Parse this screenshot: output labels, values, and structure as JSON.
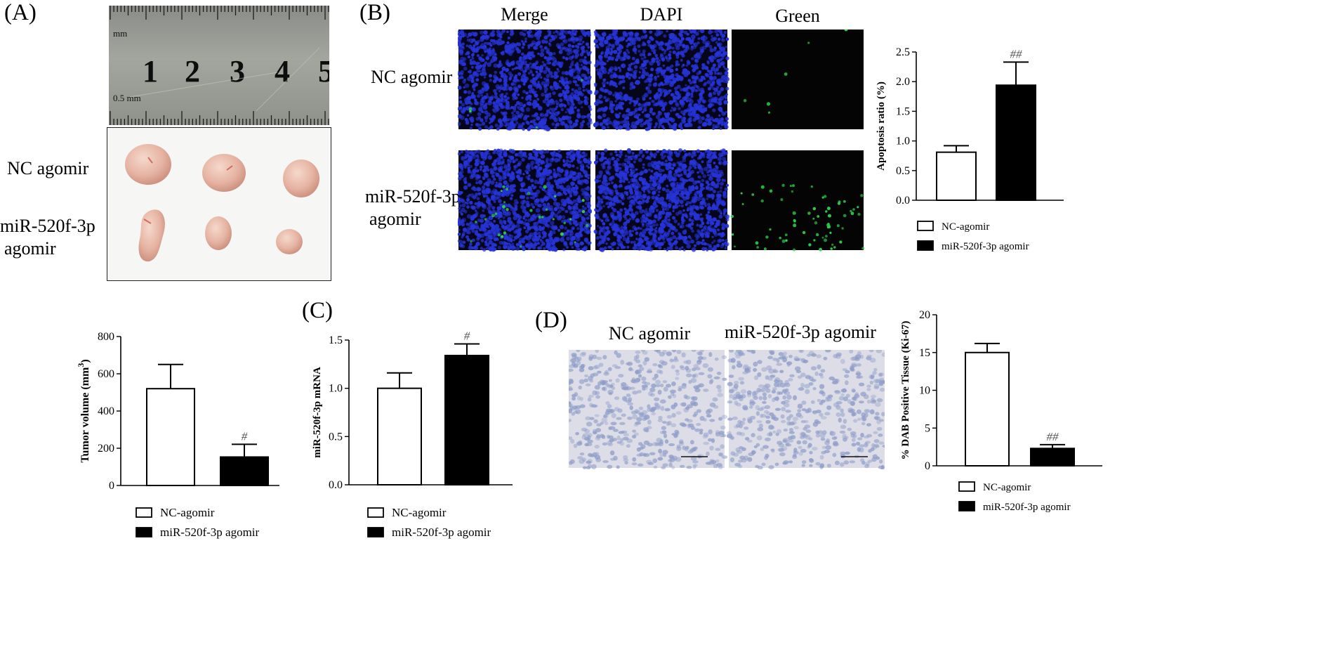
{
  "panels": {
    "A": {
      "label": "(A)",
      "ruler": {
        "unit_top": "mm",
        "unit_bottom": "0.5 mm",
        "numbers": [
          "1",
          "2",
          "3",
          "4",
          "5"
        ]
      },
      "rows": [
        {
          "label": "NC agomir"
        },
        {
          "label_line1": "miR-520f-3p",
          "label_line2": "agomir"
        }
      ]
    },
    "B": {
      "label": "(B)",
      "columns": [
        "Merge",
        "DAPI",
        "Green"
      ],
      "rows": [
        {
          "label": "NC agomir"
        },
        {
          "label_line1": "miR-520f-3p",
          "label_line2": "agomir"
        }
      ]
    },
    "C": {
      "label": "(C)"
    },
    "D": {
      "label": "(D)",
      "columns": [
        "NC agomir",
        "miR-520f-3p agomir"
      ]
    }
  },
  "legend": {
    "nc": "NC-agomir",
    "mir": "miR-520f-3p agomir"
  },
  "colors": {
    "dapi": "#2633d6",
    "green": "#2fd14a",
    "ihc_bg": "#dcdde6",
    "ihc_nuclei": "#8e9cc8",
    "tissue": "#e8b9a8",
    "bar_mir": "#000000"
  },
  "chart_data": [
    {
      "id": "apoptosis",
      "type": "bar",
      "categories": [
        "NC-agomir",
        "miR-520f-3p agomir"
      ],
      "values": [
        0.81,
        1.94
      ],
      "errors": [
        0.11,
        0.39
      ],
      "significance": [
        "",
        "##"
      ],
      "ylabel": "Apoptosis ratio (%)",
      "ylim": [
        0,
        2.5
      ],
      "yticks": [
        0.0,
        0.5,
        1.0,
        1.5,
        2.0,
        2.5
      ],
      "tick_labels": [
        "0.0",
        "0.5",
        "1.0",
        "1.5",
        "2.0",
        "2.5"
      ]
    },
    {
      "id": "tumor_volume",
      "type": "bar",
      "categories": [
        "NC-agomir",
        "miR-520f-3p agomir"
      ],
      "values": [
        520,
        153
      ],
      "errors": [
        130,
        68
      ],
      "significance": [
        "",
        "#"
      ],
      "ylabel": "Tumor volume (mm",
      "ylabel_sup": "3",
      "ylabel_end": ")",
      "ylim": [
        0,
        800
      ],
      "yticks": [
        0,
        200,
        400,
        600,
        800
      ],
      "tick_labels": [
        "0",
        "200",
        "400",
        "600",
        "800"
      ]
    },
    {
      "id": "mirna",
      "type": "bar",
      "categories": [
        "NC-agomir",
        "miR-520f-3p agomir"
      ],
      "values": [
        1.0,
        1.34
      ],
      "errors": [
        0.16,
        0.12
      ],
      "significance": [
        "",
        "#"
      ],
      "ylabel": "miR-520f-3p mRNA",
      "ylim": [
        0,
        1.5
      ],
      "yticks": [
        0.0,
        0.5,
        1.0,
        1.5
      ],
      "tick_labels": [
        "0.0",
        "0.5",
        "1.0",
        "1.5"
      ]
    },
    {
      "id": "ki67",
      "type": "bar",
      "categories": [
        "NC-agomir",
        "miR-520f-3p agomir"
      ],
      "values": [
        15.0,
        2.3
      ],
      "errors": [
        1.2,
        0.5
      ],
      "significance": [
        "",
        "##"
      ],
      "ylabel": "% DAB Positive Tissue (Ki-67)",
      "ylim": [
        0,
        20
      ],
      "yticks": [
        0,
        5,
        10,
        15,
        20
      ],
      "tick_labels": [
        "0",
        "5",
        "10",
        "15",
        "20"
      ]
    }
  ]
}
